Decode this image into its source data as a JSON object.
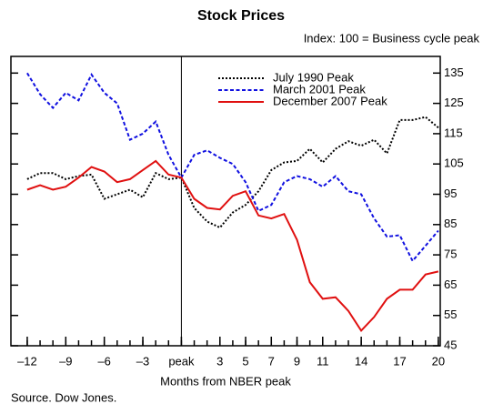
{
  "chart_data": {
    "type": "line",
    "title": "Stock Prices",
    "subtitle": "Index: 100 = Business cycle peak",
    "xlabel": "Months from NBER peak",
    "source": "Source. Dow Jones.",
    "x": [
      -12,
      -11,
      -10,
      -9,
      -8,
      -7,
      -6,
      -5,
      -4,
      -3,
      -2,
      -1,
      0,
      1,
      2,
      3,
      4,
      5,
      6,
      7,
      8,
      9,
      10,
      11,
      12,
      13,
      14,
      15,
      16,
      17,
      18,
      19,
      20
    ],
    "xlim": [
      -13.27,
      20.15
    ],
    "xticks": [
      {
        "value": -12,
        "label": "–12"
      },
      {
        "value": -9,
        "label": "–9"
      },
      {
        "value": -6,
        "label": "–6"
      },
      {
        "value": -3,
        "label": "–3"
      },
      {
        "value": 0,
        "label": "peak"
      },
      3,
      5,
      7,
      9,
      11,
      14,
      17,
      20
    ],
    "xminorticks": [
      -12,
      -11,
      -10,
      -9,
      -8,
      -7,
      -6,
      -5,
      -4,
      -3,
      -2,
      -1,
      0,
      1,
      2,
      3,
      4,
      5,
      6,
      7,
      8,
      9,
      10,
      11,
      12,
      13,
      14,
      15,
      16,
      17,
      18,
      19,
      20
    ],
    "ylim": [
      45,
      140.5
    ],
    "yticks": [
      45,
      55,
      65,
      75,
      85,
      95,
      105,
      115,
      125,
      135
    ],
    "vline": 0,
    "legend": "upper-right",
    "series": [
      {
        "name": "July 1990 Peak",
        "color": "#000000",
        "style": "dotted",
        "values": [
          100,
          102,
          102,
          100,
          101,
          101.5,
          93.5,
          95,
          96.5,
          94,
          102,
          100,
          100.5,
          90.5,
          86,
          84,
          89,
          91.5,
          96,
          103,
          105.5,
          106,
          110,
          105.5,
          110,
          112.5,
          111,
          113,
          108.5,
          119.5,
          119.5,
          120.5,
          117
        ]
      },
      {
        "name": "March 2001 Peak",
        "color": "#1010e0",
        "style": "dashed",
        "values": [
          135,
          128,
          123.5,
          128.5,
          126,
          134.5,
          128.5,
          125,
          113,
          115,
          119,
          108,
          100.5,
          108,
          109.5,
          107,
          105,
          99,
          89.5,
          91.5,
          99,
          101,
          100,
          97.5,
          101,
          96,
          95,
          87,
          81,
          81.5,
          73,
          78,
          83
        ]
      },
      {
        "name": "December 2007 Peak",
        "color": "#e01010",
        "style": "solid",
        "values": [
          96.5,
          98,
          96.5,
          97.5,
          100.5,
          104,
          102.5,
          99,
          100,
          103,
          106,
          101.5,
          100.5,
          93.5,
          90.5,
          90,
          94.5,
          96,
          88,
          87,
          88.5,
          80,
          66,
          60.5,
          61,
          56.5,
          50,
          54.5,
          60.5,
          63.5,
          63.5,
          68.5,
          69.5
        ]
      }
    ]
  }
}
